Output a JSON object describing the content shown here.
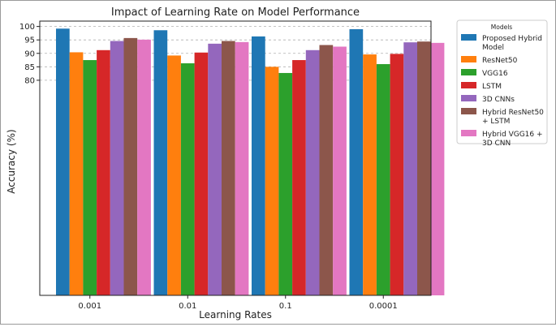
{
  "chart_data": {
    "type": "bar",
    "title": "Impact of Learning Rate on Model Performance",
    "xlabel": "Learning Rates",
    "ylabel": "Accuracy (%)",
    "categories": [
      "0.001",
      "0.01",
      "0.1",
      "0.0001"
    ],
    "ylim": [
      0,
      102
    ],
    "yticks": [
      80,
      85,
      90,
      95,
      100
    ],
    "grid": true,
    "legend": {
      "title": "Models",
      "placement": "outside-top-right"
    },
    "series": [
      {
        "name": "Proposed Hybrid Model",
        "color": "#1f77b4",
        "values": [
          99.2,
          98.6,
          96.3,
          99.0
        ]
      },
      {
        "name": "ResNet50",
        "color": "#ff7f0e",
        "values": [
          90.4,
          89.2,
          85.0,
          89.6
        ]
      },
      {
        "name": "VGG16",
        "color": "#2ca02c",
        "values": [
          87.5,
          86.3,
          82.7,
          86.0
        ]
      },
      {
        "name": "LSTM",
        "color": "#d62728",
        "values": [
          91.2,
          90.3,
          87.5,
          89.8
        ]
      },
      {
        "name": "3D CNNs",
        "color": "#9467bd",
        "values": [
          94.6,
          93.6,
          91.2,
          94.1
        ]
      },
      {
        "name": "Hybrid ResNet50 + LSTM",
        "color": "#8c564b",
        "values": [
          95.7,
          94.6,
          93.1,
          94.4
        ]
      },
      {
        "name": "Hybrid VGG16 + 3D CNN",
        "color": "#e377c2",
        "values": [
          95.1,
          94.2,
          92.5,
          93.9
        ]
      }
    ]
  }
}
